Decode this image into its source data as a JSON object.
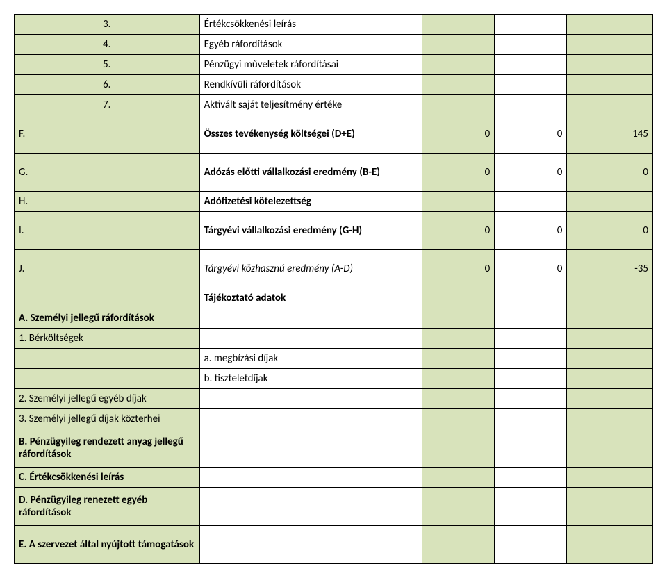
{
  "colors": {
    "altRow": "#d8e3bb",
    "border": "#000000",
    "text": "#000000",
    "background": "#ffffff"
  },
  "rows": [
    {
      "num": "3.",
      "label": "Értékcsökkenési leírás"
    },
    {
      "num": "4.",
      "label": "Egyéb ráfordítások"
    },
    {
      "num": "5.",
      "label": "Pénzügyi műveletek ráfordításai"
    },
    {
      "num": "6.",
      "label": "Rendkívüli ráfordítások"
    },
    {
      "num": "7.",
      "label": "Aktivált saját teljesítmény értéke"
    }
  ],
  "sumRows": [
    {
      "key": "F.",
      "label": "Összes tevékenység költségei (D+E)",
      "c": "0",
      "d": "0",
      "e": "145"
    },
    {
      "key": "G.",
      "label": "Adózás előtti vállalkozási eredmény (B-E)",
      "c": "0",
      "d": "0",
      "e": "0"
    },
    {
      "key": "H.",
      "label": "Adófizetési kötelezettség"
    },
    {
      "key": "I.",
      "label": "Tárgyévi vállalkozási eredmény (G-H)",
      "c": "0",
      "d": "0",
      "e": "0"
    },
    {
      "key": "J.",
      "label": "Tárgyévi közhasznú eredmény (A-D)",
      "c": "0",
      "d": "0",
      "e": "-35",
      "italic": true
    }
  ],
  "infoHeader": "Tájékoztató adatok",
  "section2": {
    "A": "A. Személyi jellegű ráfordítások",
    "r1": "1. Bérköltségek",
    "a": "a. megbízási díjak",
    "b": "b. tiszteletdíjak",
    "r2": "2. Személyi jellegű egyéb díjak",
    "r3": "3. Személyi jellegű díjak közterhei",
    "B": "B. Pénzügyileg rendezett anyag jellegű ráfordítások",
    "C": "C. Értékcsökkenési leírás",
    "D": "D. Pénzügyileg renezett egyéb ráfordítások",
    "E": "E. A szervezet által nyújtott támogatások"
  }
}
